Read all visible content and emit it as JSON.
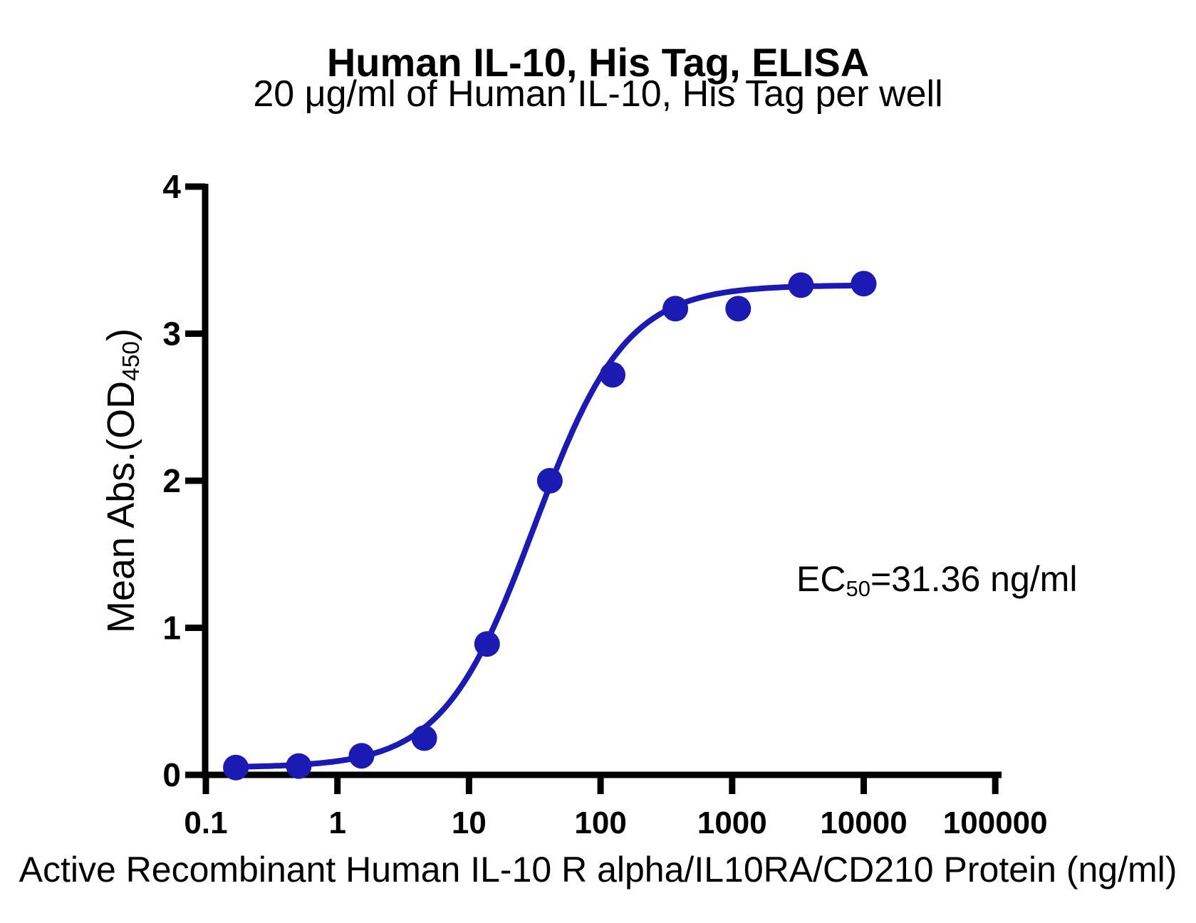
{
  "chart_data": {
    "type": "scatter",
    "title": "Human IL-10, His Tag, ELISA",
    "subtitle": "20 μg/ml of Human IL-10, His Tag per well",
    "xlabel": "Active Recombinant Human IL-10 R alpha/IL10RA/CD210 Protein (ng/ml)",
    "ylabel": "Mean Abs.(OD450)",
    "ylabel_parts": {
      "prefix": "Mean Abs.(OD",
      "sub": "450",
      "suffix": ")"
    },
    "x_scale": "log10",
    "xlim": [
      0.1,
      100000
    ],
    "ylim": [
      0,
      4
    ],
    "grid": false,
    "legend": "none",
    "x_tick_values": [
      0.1,
      1,
      10,
      100,
      1000,
      10000,
      100000
    ],
    "x_tick_labels": [
      "0.1",
      "1",
      "10",
      "100",
      "1000",
      "10000",
      "100000"
    ],
    "y_tick_values": [
      0,
      1,
      2,
      3,
      4
    ],
    "y_tick_labels": [
      "0",
      "1",
      "2",
      "3",
      "4"
    ],
    "points": {
      "x": [
        0.169,
        0.508,
        1.524,
        4.572,
        13.717,
        41.152,
        123.457,
        370.37,
        1111.11,
        3333.33,
        10000
      ],
      "y": [
        0.05,
        0.06,
        0.13,
        0.25,
        0.89,
        2.0,
        2.72,
        3.17,
        3.17,
        3.33,
        3.34
      ]
    },
    "fit_curve": {
      "model": "4PL",
      "bottom": 0.05,
      "top": 3.33,
      "ec50": 31.36,
      "hill": 1.25,
      "x_start": 0.169,
      "x_end": 10000
    },
    "annotation": {
      "text": "EC50=31.36 ng/ml",
      "prefix": "EC",
      "sub": "50",
      "rest": "=31.36 ng/ml",
      "ec50_value": "31.36",
      "unit": "ng/ml"
    },
    "colors": {
      "curve": "#1B1BB3",
      "marker": "#1B1BB3",
      "axis": "#000000",
      "text": "#000000",
      "background": "#FFFFFF"
    }
  }
}
